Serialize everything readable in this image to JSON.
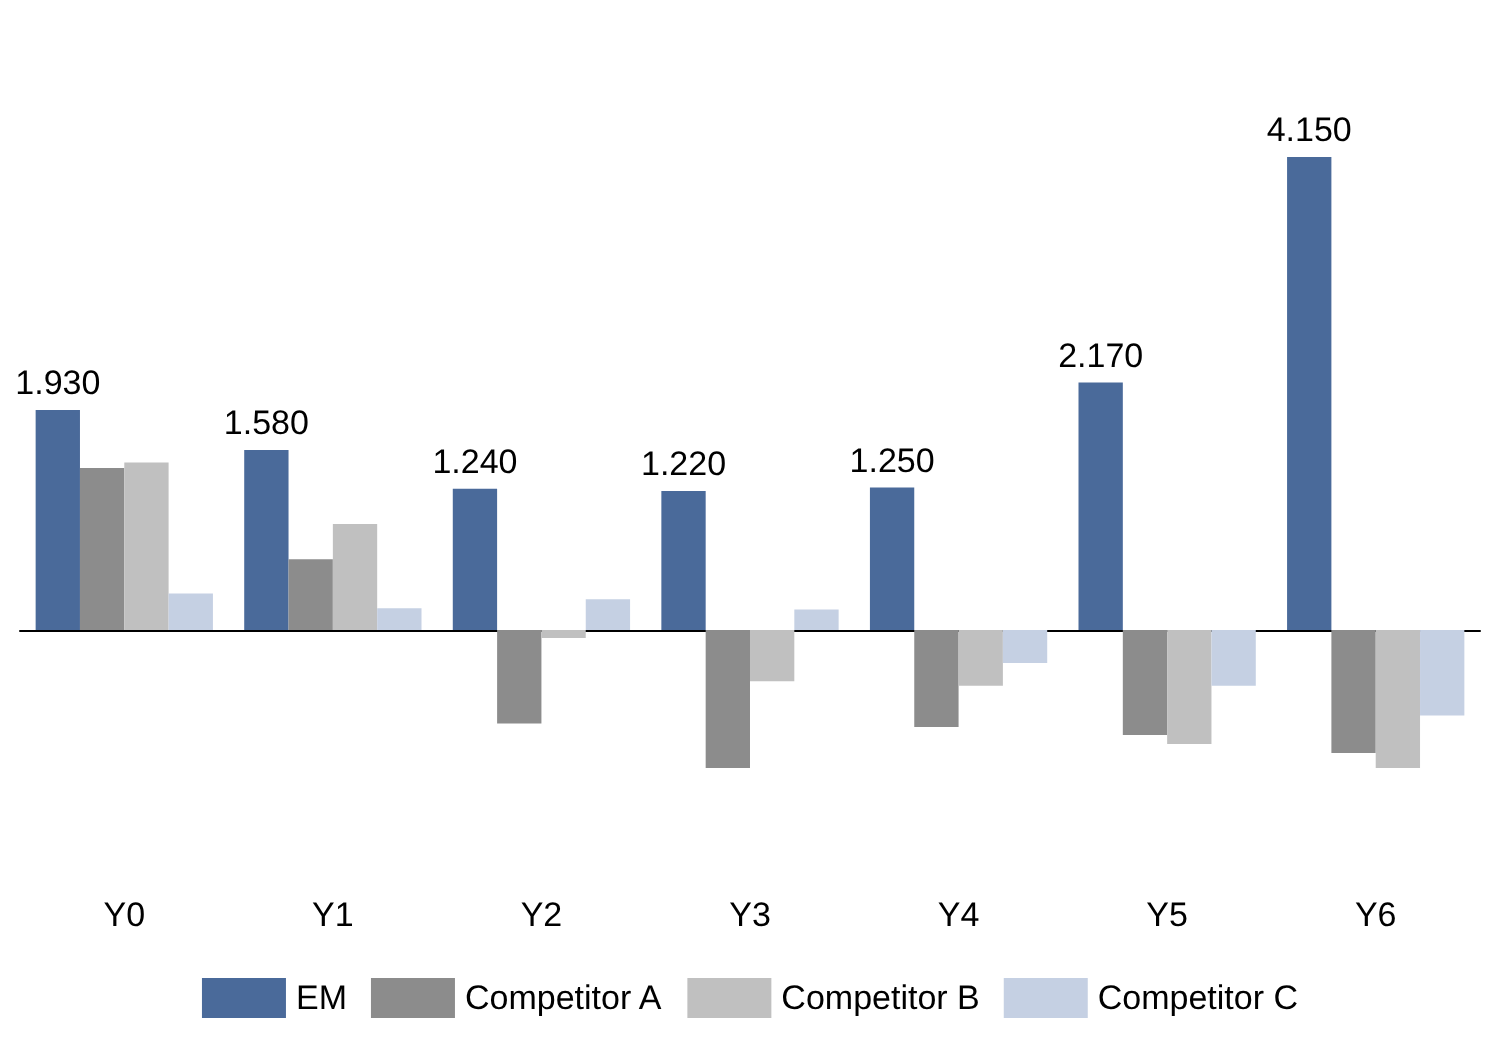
{
  "chart_data": {
    "type": "bar",
    "categories": [
      "Y0",
      "Y1",
      "Y2",
      "Y3",
      "Y4",
      "Y5",
      "Y6"
    ],
    "series": [
      {
        "name": "EM",
        "color": "#4a6a9a",
        "values": [
          1.93,
          1.58,
          1.24,
          1.22,
          1.25,
          2.17,
          4.15
        ],
        "value_labels": [
          "1.930",
          "1.580",
          "1.240",
          "1.220",
          "1.250",
          "2.170",
          "4.150"
        ]
      },
      {
        "name": "Competitor A",
        "color": "#8c8c8c",
        "values": [
          1.42,
          0.62,
          -0.82,
          -1.21,
          -0.85,
          -0.92,
          -1.08
        ]
      },
      {
        "name": "Competitor B",
        "color": "#c0c0c0",
        "values": [
          1.47,
          0.93,
          -0.07,
          -0.45,
          -0.49,
          -1.0,
          -1.21
        ]
      },
      {
        "name": "Competitor C",
        "color": "#c5d0e3",
        "values": [
          0.32,
          0.19,
          0.27,
          0.18,
          -0.29,
          -0.49,
          -0.75
        ]
      }
    ],
    "legend": "bottom"
  }
}
